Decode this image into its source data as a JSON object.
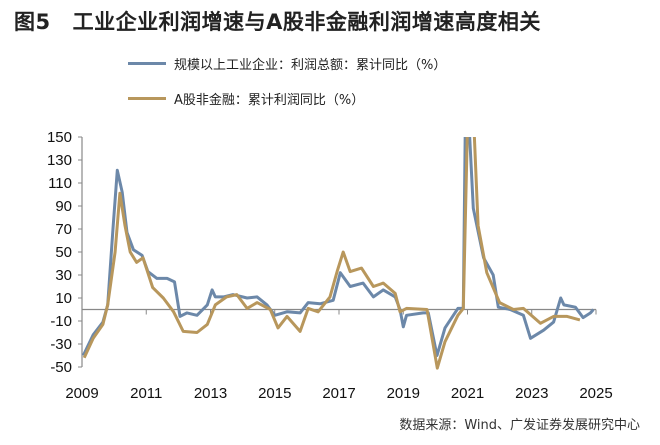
{
  "title": {
    "figure_no": "图5",
    "text": "工业企业利润增速与A股非金融利润增速高度相关"
  },
  "source": "数据来源：Wind、广发证券发展研究中心",
  "colors": {
    "industrial": "#6c88a9",
    "ashare": "#b8975c",
    "axis": "#888888"
  },
  "chart_data": {
    "type": "line",
    "title": "图5　工业企业利润增速与A股非金融利润增速高度相关",
    "xlabel": "",
    "ylabel": "",
    "xlim": [
      2009,
      2025
    ],
    "ylim": [
      -50,
      150
    ],
    "yticks": [
      150,
      130,
      110,
      90,
      70,
      50,
      30,
      10,
      -10,
      -30,
      -50
    ],
    "xticks": [
      "2009",
      "2011",
      "2013",
      "2015",
      "2017",
      "2019",
      "2021",
      "2023",
      "2025"
    ],
    "grid": false,
    "legend_position": "top",
    "series": [
      {
        "name": "规模以上工业企业：利润总额：累计同比（%）",
        "color": "#6c88a9",
        "x": [
          2009.04,
          2009.35,
          2009.65,
          2009.8,
          2009.97,
          2010.1,
          2010.25,
          2010.4,
          2010.6,
          2010.87,
          2011.05,
          2011.33,
          2011.65,
          2011.88,
          2012.05,
          2012.27,
          2012.58,
          2012.9,
          2013.05,
          2013.15,
          2013.4,
          2013.7,
          2014.14,
          2014.45,
          2014.76,
          2015.0,
          2015.38,
          2015.79,
          2016.04,
          2016.41,
          2016.82,
          2017.04,
          2017.35,
          2017.75,
          2018.07,
          2018.38,
          2018.75,
          2018.9,
          2019.0,
          2019.1,
          2019.62,
          2019.78,
          2020.05,
          2020.3,
          2020.7,
          2020.87,
          2020.93,
          2021.05,
          2021.18,
          2021.5,
          2021.8,
          2021.96,
          2022.33,
          2022.74,
          2022.96,
          2023.37,
          2023.68,
          2023.9,
          2024.0,
          2024.36,
          2024.6,
          2024.83,
          2024.92
        ],
        "y": [
          -40,
          -22,
          -11,
          4,
          73,
          121,
          102,
          67,
          52,
          47,
          33,
          27,
          27,
          24,
          -6,
          -3,
          -5,
          4,
          17,
          11,
          11,
          13,
          10,
          11,
          4,
          -5,
          -2,
          -3,
          6,
          5,
          8,
          32,
          20,
          23,
          11,
          17,
          11,
          0,
          -15,
          -5,
          -3,
          -3,
          -40,
          -16,
          1,
          1,
          160,
          160,
          88,
          45,
          30,
          2,
          0,
          -5,
          -25,
          -18,
          -11,
          10,
          4,
          2,
          -7,
          -3,
          0
        ]
      },
      {
        "name": "A股非金融：累计利润同比（%）",
        "color": "#b8975c",
        "x": [
          2009.07,
          2009.35,
          2009.65,
          2009.8,
          2010.03,
          2010.18,
          2010.34,
          2010.5,
          2010.7,
          2010.9,
          2011.2,
          2011.53,
          2011.85,
          2012.15,
          2012.58,
          2012.9,
          2013.15,
          2013.5,
          2013.82,
          2014.14,
          2014.45,
          2014.86,
          2015.1,
          2015.38,
          2015.79,
          2016.04,
          2016.35,
          2016.72,
          2016.94,
          2017.13,
          2017.35,
          2017.7,
          2018.07,
          2018.38,
          2018.75,
          2018.9,
          2019.1,
          2019.74,
          2020.06,
          2020.3,
          2020.7,
          2020.87,
          2021.0,
          2021.2,
          2021.33,
          2021.6,
          2022.0,
          2022.43,
          2022.74,
          2023.27,
          2023.68,
          2024.1,
          2024.5
        ],
        "y": [
          -42,
          -25,
          -13,
          4,
          50,
          101,
          73,
          50,
          41,
          45,
          19,
          10,
          -2,
          -19,
          -20,
          -13,
          4,
          11,
          13,
          1,
          6,
          0,
          -16,
          -6,
          -19,
          1,
          -2,
          11,
          33,
          50,
          33,
          36,
          20,
          23,
          14,
          -2,
          1,
          0,
          -51,
          -28,
          -5,
          1,
          160,
          160,
          73,
          32,
          6,
          0,
          1,
          -12,
          -6,
          -6,
          -9
        ]
      }
    ]
  }
}
